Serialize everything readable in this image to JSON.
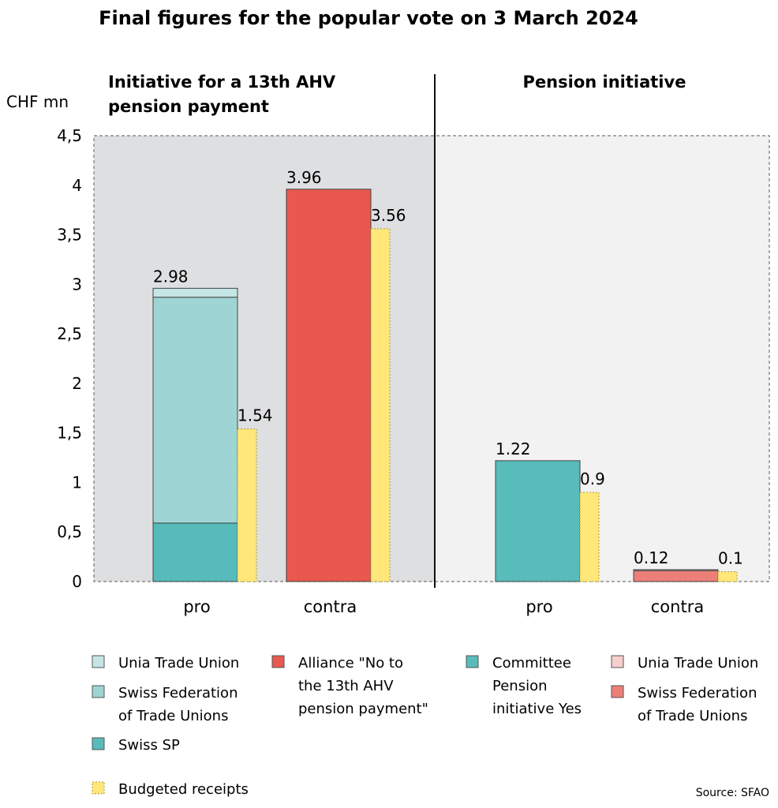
{
  "title": "Final figures for the popular vote on 3 March 2024",
  "source": "Source: SFAO",
  "colors": {
    "unia_pro": "#c5e6e5",
    "sftu_pro": "#9fd4d4",
    "swiss_sp": "#56bbba",
    "alliance": "#e8584e",
    "committee": "#58bcbb",
    "unia_contra": "#f6cfcd",
    "sftu_contra": "#ec8079",
    "budgeted": "#ffe779",
    "panel_left": "#dedfe1",
    "panel_right": "#f2f2f2"
  },
  "chart_data": {
    "type": "bar",
    "stacked": true,
    "ylabel": "CHF mn",
    "ylim": [
      0,
      4.5
    ],
    "yticks": [
      {
        "value": 0,
        "label": "0"
      },
      {
        "value": 0.5,
        "label": "0,5"
      },
      {
        "value": 1,
        "label": "1"
      },
      {
        "value": 1.5,
        "label": "1,5"
      },
      {
        "value": 2,
        "label": "2"
      },
      {
        "value": 2.5,
        "label": "2,5"
      },
      {
        "value": 3,
        "label": "3"
      },
      {
        "value": 3.5,
        "label": "3,5"
      },
      {
        "value": 4,
        "label": "4"
      },
      {
        "value": 4.5,
        "label": "4,5"
      }
    ],
    "grid": false,
    "legend_position": "bottom",
    "panels": [
      {
        "title_lines": [
          "Initiative for a 13th AHV",
          "pension payment"
        ],
        "groups": [
          {
            "category": "pro",
            "total_label": "2.98",
            "segments": [
              {
                "series": "Swiss SP",
                "value": 0.59,
                "color_key": "swiss_sp"
              },
              {
                "series": "Swiss Federation of Trade Unions",
                "value": 2.28,
                "color_key": "sftu_pro"
              },
              {
                "series": "Unia Trade Union",
                "value": 0.09,
                "color_key": "unia_pro"
              }
            ],
            "budget": {
              "value": 1.54,
              "label": "1.54"
            }
          },
          {
            "category": "contra",
            "total_label": "3.96",
            "segments": [
              {
                "series": "Alliance \"No to the 13th AHV pension payment\"",
                "value": 3.96,
                "color_key": "alliance"
              }
            ],
            "budget": {
              "value": 3.56,
              "label": "3.56"
            }
          }
        ]
      },
      {
        "title_lines": [
          "Pension initiative"
        ],
        "groups": [
          {
            "category": "pro",
            "total_label": "1.22",
            "segments": [
              {
                "series": "Committee Pension initiative Yes",
                "value": 1.22,
                "color_key": "committee"
              }
            ],
            "budget": {
              "value": 0.9,
              "label": "0.9"
            }
          },
          {
            "category": "contra",
            "total_label": "0.12",
            "segments": [
              {
                "series": "Swiss Federation of Trade Unions",
                "value": 0.11,
                "color_key": "sftu_contra"
              },
              {
                "series": "Unia Trade Union",
                "value": 0.01,
                "color_key": "unia_contra"
              }
            ],
            "budget": {
              "value": 0.1,
              "label": "0.1"
            }
          }
        ]
      }
    ],
    "legend": [
      {
        "name": "unia-pro",
        "color_key": "unia_pro",
        "lines": [
          "Unia Trade Union"
        ]
      },
      {
        "name": "sftu-pro",
        "color_key": "sftu_pro",
        "lines": [
          "Swiss Federation",
          "of Trade Unions"
        ]
      },
      {
        "name": "swiss-sp",
        "color_key": "swiss_sp",
        "lines": [
          "Swiss SP"
        ]
      },
      {
        "name": "budgeted",
        "color_key": "budgeted",
        "lines": [
          "Budgeted receipts"
        ],
        "dashed": true
      },
      {
        "name": "alliance",
        "color_key": "alliance",
        "lines": [
          "Alliance \"No to",
          "the 13th AHV",
          "pension payment\""
        ]
      },
      {
        "name": "committee",
        "color_key": "committee",
        "lines": [
          "Committee",
          "Pension",
          "initiative Yes"
        ]
      },
      {
        "name": "unia-contra",
        "color_key": "unia_contra",
        "lines": [
          "Unia Trade Union"
        ]
      },
      {
        "name": "sftu-contra",
        "color_key": "sftu_contra",
        "lines": [
          "Swiss Federation",
          "of Trade Unions"
        ]
      }
    ]
  }
}
